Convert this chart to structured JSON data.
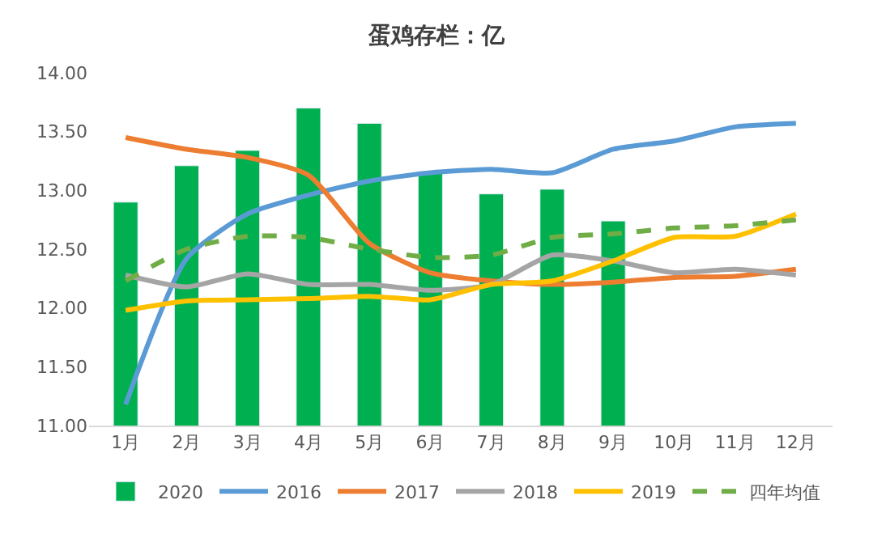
{
  "chart_data": {
    "type": "bar",
    "title": "蛋鸡存栏：亿",
    "categories": [
      "1月",
      "2月",
      "3月",
      "4月",
      "5月",
      "6月",
      "7月",
      "8月",
      "9月",
      "10月",
      "11月",
      "12月"
    ],
    "series": [
      {
        "name": "2020",
        "color": "#00b050",
        "values": [
          12.9,
          13.21,
          13.34,
          13.7,
          13.57,
          13.16,
          12.97,
          13.01,
          12.74,
          null,
          null,
          null
        ]
      },
      {
        "name": "2016",
        "type": "line",
        "color": "#5b9bd5",
        "values": [
          11.18,
          12.42,
          12.8,
          12.96,
          13.08,
          13.15,
          13.18,
          13.15,
          13.35,
          13.42,
          13.54,
          13.57
        ]
      },
      {
        "name": "2017",
        "type": "line",
        "color": "#ed7d31",
        "values": [
          13.45,
          13.35,
          13.28,
          13.13,
          12.55,
          12.3,
          12.23,
          12.2,
          12.22,
          12.26,
          12.27,
          12.33
        ]
      },
      {
        "name": "2018",
        "type": "line",
        "color": "#a5a5a5",
        "values": [
          12.28,
          12.18,
          12.29,
          12.2,
          12.2,
          12.15,
          12.2,
          12.45,
          12.4,
          12.3,
          12.33,
          12.28
        ]
      },
      {
        "name": "2019",
        "type": "line",
        "color": "#ffc000",
        "values": [
          11.98,
          12.06,
          12.07,
          12.08,
          12.1,
          12.07,
          12.2,
          12.23,
          12.4,
          12.6,
          12.61,
          12.8
        ]
      },
      {
        "name": "四年均值",
        "type": "line",
        "line_style": "dashed",
        "color": "#70ad47",
        "values": [
          12.23,
          12.5,
          12.61,
          12.6,
          12.5,
          12.43,
          12.45,
          12.6,
          12.63,
          12.68,
          12.7,
          12.75
        ]
      }
    ],
    "ylim": [
      11,
      14
    ],
    "yticks": [
      {
        "value": 11,
        "label": "11.00"
      },
      {
        "value": 11.5,
        "label": "11.50"
      },
      {
        "value": 12,
        "label": "12.00"
      },
      {
        "value": 12.5,
        "label": "12.50"
      },
      {
        "value": 13,
        "label": "13.00"
      },
      {
        "value": 13.5,
        "label": "13.50"
      },
      {
        "value": 14,
        "label": "14.00"
      }
    ],
    "legend": "bottom",
    "marker": "none"
  }
}
